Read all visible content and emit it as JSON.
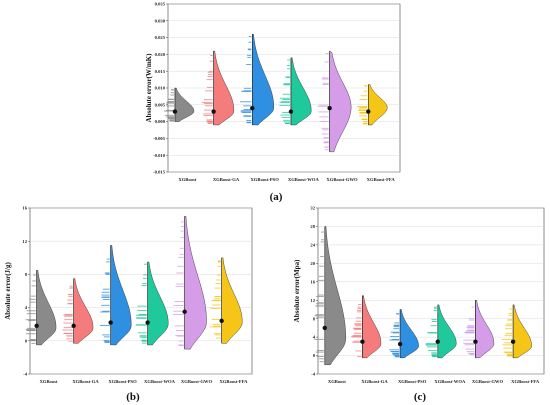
{
  "panel_labels": [
    "(a)",
    "(b)",
    "(c)"
  ],
  "chart_data": [
    {
      "type": "violin",
      "panel": "(a)",
      "ylabel": "Absolute error(W/mK)",
      "ylim": [
        -0.015,
        0.035
      ],
      "yticks": [
        "-0.015",
        "-0.010",
        "-0.005",
        "0.000",
        "0.005",
        "0.010",
        "0.015",
        "0.020",
        "0.025",
        "0.030",
        "0.035"
      ],
      "categories": [
        "XGBoost",
        "XGBoost-GA",
        "XGBoost-PSO",
        "XGBoost-WOA",
        "XGBoost-GWO",
        "XGBoost-FFA"
      ],
      "colors": [
        "#8a8a8a",
        "#f47c7c",
        "#2f8fe0",
        "#1fc99b",
        "#d59de8",
        "#f5c518"
      ],
      "series": [
        {
          "name": "XGBoost",
          "min": 0.0,
          "max": 0.01,
          "mean": 0.003,
          "mode": 0.003,
          "width": 0.75
        },
        {
          "name": "XGBoost-GA",
          "min": -0.001,
          "max": 0.021,
          "mean": 0.003,
          "mode": 0.003,
          "width": 0.8
        },
        {
          "name": "XGBoost-PSO",
          "min": -0.001,
          "max": 0.026,
          "mean": 0.004,
          "mode": 0.004,
          "width": 0.85
        },
        {
          "name": "XGBoost-WOA",
          "min": -0.001,
          "max": 0.019,
          "mean": 0.003,
          "mode": 0.003,
          "width": 0.8
        },
        {
          "name": "XGBoost-GWO",
          "min": -0.009,
          "max": 0.021,
          "mean": 0.004,
          "mode": 0.004,
          "width": 0.85
        },
        {
          "name": "XGBoost-FFA",
          "min": -0.001,
          "max": 0.011,
          "mean": 0.003,
          "mode": 0.004,
          "width": 0.75
        }
      ]
    },
    {
      "type": "violin",
      "panel": "(b)",
      "ylabel": "Absolute error(J/g)",
      "ylim": [
        -4,
        16
      ],
      "yticks": [
        "-4",
        "0",
        "4",
        "8",
        "12",
        "16"
      ],
      "categories": [
        "XGBoost",
        "XGBoost-GA",
        "XGBoost-PSO",
        "XGBoost-WOA",
        "XGBoost-GWO",
        "XGBoost-FFA"
      ],
      "colors": [
        "#8a8a8a",
        "#f47c7c",
        "#2f8fe0",
        "#1fc99b",
        "#d59de8",
        "#f5c518"
      ],
      "series": [
        {
          "name": "XGBoost",
          "min": -0.5,
          "max": 8.5,
          "mean": 1.8,
          "mode": 1.5,
          "width": 0.8
        },
        {
          "name": "XGBoost-GA",
          "min": -0.3,
          "max": 7.5,
          "mean": 1.8,
          "mode": 1.5,
          "width": 0.8
        },
        {
          "name": "XGBoost-PSO",
          "min": -0.5,
          "max": 11.5,
          "mean": 2.2,
          "mode": 1.8,
          "width": 0.85
        },
        {
          "name": "XGBoost-WOA",
          "min": -0.5,
          "max": 9.5,
          "mean": 2.2,
          "mode": 2.0,
          "width": 0.85
        },
        {
          "name": "XGBoost-GWO",
          "min": -1.0,
          "max": 15.0,
          "mean": 3.5,
          "mode": 2.2,
          "width": 0.9
        },
        {
          "name": "XGBoost-FFA",
          "min": -0.3,
          "max": 10.0,
          "mean": 2.4,
          "mode": 2.2,
          "width": 0.85
        }
      ]
    },
    {
      "type": "violin",
      "panel": "(c)",
      "ylabel": "Absolute error(Mpa)",
      "ylim": [
        -4,
        32
      ],
      "yticks": [
        "-4",
        "0",
        "4",
        "8",
        "12",
        "16",
        "20",
        "24",
        "28",
        "32"
      ],
      "categories": [
        "XGBoost",
        "XGBoost-GA",
        "XGBoost-PSO",
        "XGBoost-WOA",
        "XGBoost-GWO",
        "XGBoost-FFA"
      ],
      "colors": [
        "#8a8a8a",
        "#f47c7c",
        "#2f8fe0",
        "#1fc99b",
        "#d59de8",
        "#f5c518"
      ],
      "series": [
        {
          "name": "XGBoost",
          "min": -2.0,
          "max": 28.0,
          "mean": 6.0,
          "mode": 3.5,
          "width": 0.85
        },
        {
          "name": "XGBoost-GA",
          "min": -0.5,
          "max": 13.0,
          "mean": 3.0,
          "mode": 2.5,
          "width": 0.75
        },
        {
          "name": "XGBoost-PSO",
          "min": -0.5,
          "max": 10.0,
          "mean": 2.5,
          "mode": 2.0,
          "width": 0.75
        },
        {
          "name": "XGBoost-WOA",
          "min": -0.5,
          "max": 11.0,
          "mean": 3.0,
          "mode": 2.5,
          "width": 0.75
        },
        {
          "name": "XGBoost-GWO",
          "min": -0.5,
          "max": 12.0,
          "mean": 3.0,
          "mode": 2.5,
          "width": 0.75
        },
        {
          "name": "XGBoost-FFA",
          "min": -0.5,
          "max": 11.0,
          "mean": 3.0,
          "mode": 2.0,
          "width": 0.75
        }
      ]
    }
  ]
}
